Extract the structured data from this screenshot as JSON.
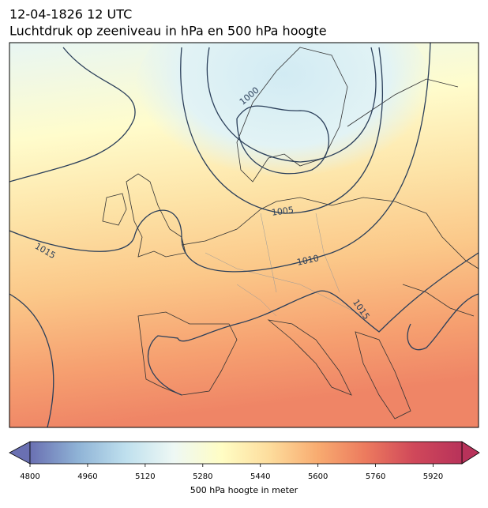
{
  "header": {
    "title": "12-04-1826 12 UTC",
    "subtitle": "Luchtdruk op zeeniveau in hPa en 500 hPa hoogte"
  },
  "map": {
    "isobar_labels": [
      1000,
      1005,
      1010,
      1015,
      1015
    ]
  },
  "colorbar": {
    "label": "500 hPa hoogte in meter",
    "lim": [
      4800,
      6000
    ],
    "ticks": [
      4800,
      4960,
      5120,
      5280,
      5440,
      5600,
      5760,
      5920
    ],
    "colors": [
      "#6a70b2",
      "#8fb3d6",
      "#bfe0ee",
      "#eef8f4",
      "#fffdc4",
      "#fddc9c",
      "#f8ab70",
      "#ec7a5e",
      "#d0485a",
      "#b8325a"
    ]
  }
}
